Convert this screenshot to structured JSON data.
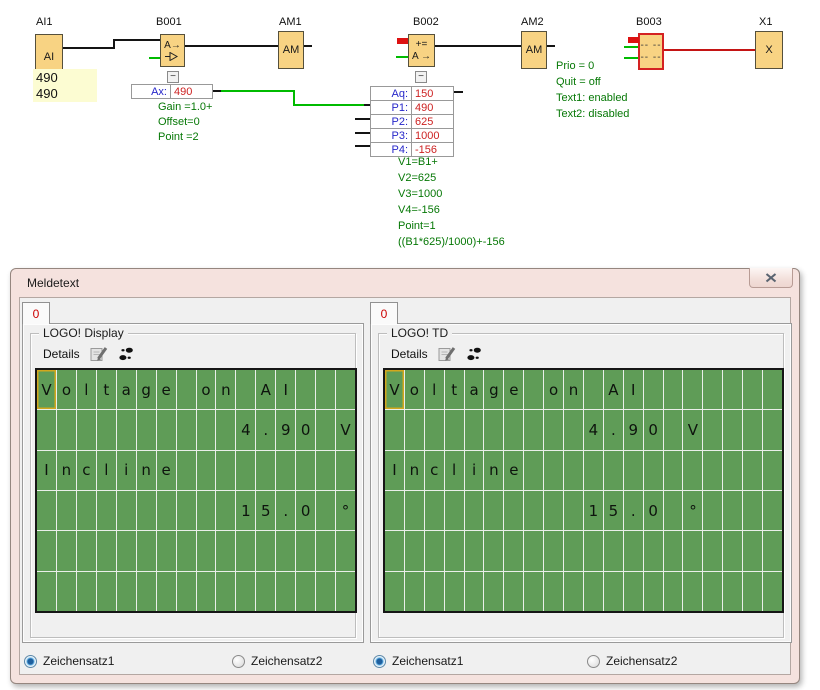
{
  "colors": {
    "block_fill": "#F8D383",
    "lcd_green": "#5F9C57",
    "lcd_cursor_gold": "#D2A71D",
    "param_label_blue": "#2626C9",
    "param_value_red": "#CD2222",
    "annotation_green": "#067806",
    "wire_black": "#141414",
    "wire_green": "#00BB00",
    "wire_red": "#C41414",
    "value_highlight_yellow": "#FCFCD2",
    "dialog_frame_pink": "#F5E2DE",
    "client_gray": "#F0F0F0",
    "tab_text_red": "#CC0000"
  },
  "icons": {
    "close": "close-icon",
    "details_edit": "edit-note-icon",
    "details_footprints": "footprints-icon",
    "collapse": "minus-icon",
    "amplifier": "amplifier-icon"
  },
  "fbd": {
    "blocks": {
      "ai1": {
        "label": "AI1",
        "text": "AI"
      },
      "b001": {
        "label": "B001",
        "line1": "A→"
      },
      "am1": {
        "label": "AM1",
        "text": "AM"
      },
      "b002": {
        "label": "B002",
        "line1": "+=",
        "line2": "A →"
      },
      "am2": {
        "label": "AM2",
        "text": "AM"
      },
      "b003": {
        "label": "B003",
        "line1": "-- --",
        "line2": "-- --"
      },
      "x1": {
        "label": "X1",
        "text": "X"
      }
    },
    "ai1_values": [
      "490",
      "490"
    ],
    "collapse_glyph": "−",
    "b001_param": {
      "label": "Ax:",
      "value": "490"
    },
    "b001_info": [
      "Gain =1.0+",
      "Offset=0",
      "Point =2"
    ],
    "b002_params": [
      {
        "label": "Aq:",
        "value": "150"
      },
      {
        "label": "P1:",
        "value": "490"
      },
      {
        "label": "P2:",
        "value": "625"
      },
      {
        "label": "P3:",
        "value": "1000"
      },
      {
        "label": "P4:",
        "value": "-156"
      }
    ],
    "b002_info": [
      "V1=B1+",
      "V2=625",
      "V3=1000",
      "V4=-156",
      "Point=1",
      "((B1*625)/1000)+-156"
    ],
    "b003_info": [
      "Prio = 0",
      "Quit = off",
      "Text1: enabled",
      "Text2: disabled"
    ]
  },
  "dialog": {
    "title": "Meldetext",
    "panels": [
      {
        "tab": "0",
        "group_title": "LOGO! Display",
        "details_label": "Details",
        "cols": 16,
        "rows_count": 6,
        "rows": [
          "Voltage on AI",
          "          4.90 V",
          "Incline",
          "          15.0 °",
          "",
          ""
        ],
        "cursor": {
          "row": 0,
          "col": 0
        },
        "charsets": [
          {
            "label": "Zeichensatz1",
            "selected": true
          },
          {
            "label": "Zeichensatz2",
            "selected": false
          }
        ]
      },
      {
        "tab": "0",
        "group_title": "LOGO! TD",
        "details_label": "Details",
        "cols": 20,
        "rows_count": 6,
        "rows": [
          "Voltage on AI",
          "          4.90 V",
          "Incline",
          "          15.0 °",
          "",
          ""
        ],
        "cursor": {
          "row": 0,
          "col": 0
        },
        "charsets": [
          {
            "label": "Zeichensatz1",
            "selected": true
          },
          {
            "label": "Zeichensatz2",
            "selected": false
          }
        ]
      }
    ]
  }
}
